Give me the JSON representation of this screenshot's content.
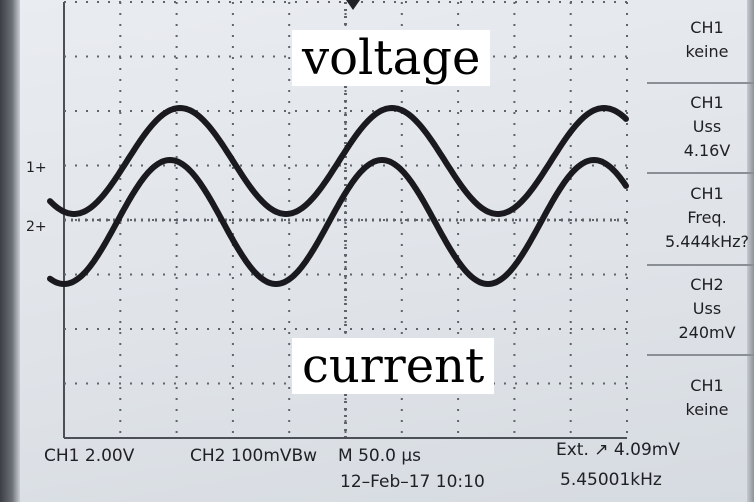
{
  "overlays": {
    "voltage": "voltage",
    "current": "current"
  },
  "markers": {
    "ch1": "1+",
    "ch2": "2+"
  },
  "side_menu": [
    {
      "line1": "CH1",
      "line2": "keine",
      "line3": ""
    },
    {
      "line1": "CH1",
      "line2": "Uss",
      "line3": "4.16V"
    },
    {
      "line1": "CH1",
      "line2": "Freq.",
      "line3": "5.444kHz?"
    },
    {
      "line1": "CH2",
      "line2": "Uss",
      "line3": "240mV"
    },
    {
      "line1": "CH1",
      "line2": "keine",
      "line3": ""
    }
  ],
  "status": {
    "ch1_scale": "CH1  2.00V",
    "ch2_scale": "CH2  100mVBw",
    "timebase": "M 50.0 µs",
    "trigger": "Ext. ↗  4.09mV",
    "datetime": "12–Feb–17 10:10",
    "trigger_freq": "5.45001kHz"
  },
  "colors": {
    "trace": "#1a1a1e",
    "screen": "#e3e7eb",
    "grid": "#5f646b"
  },
  "icons": {
    "trigger_position": "triangle-down-icon",
    "trigger_slope": "rising-edge-icon"
  }
}
